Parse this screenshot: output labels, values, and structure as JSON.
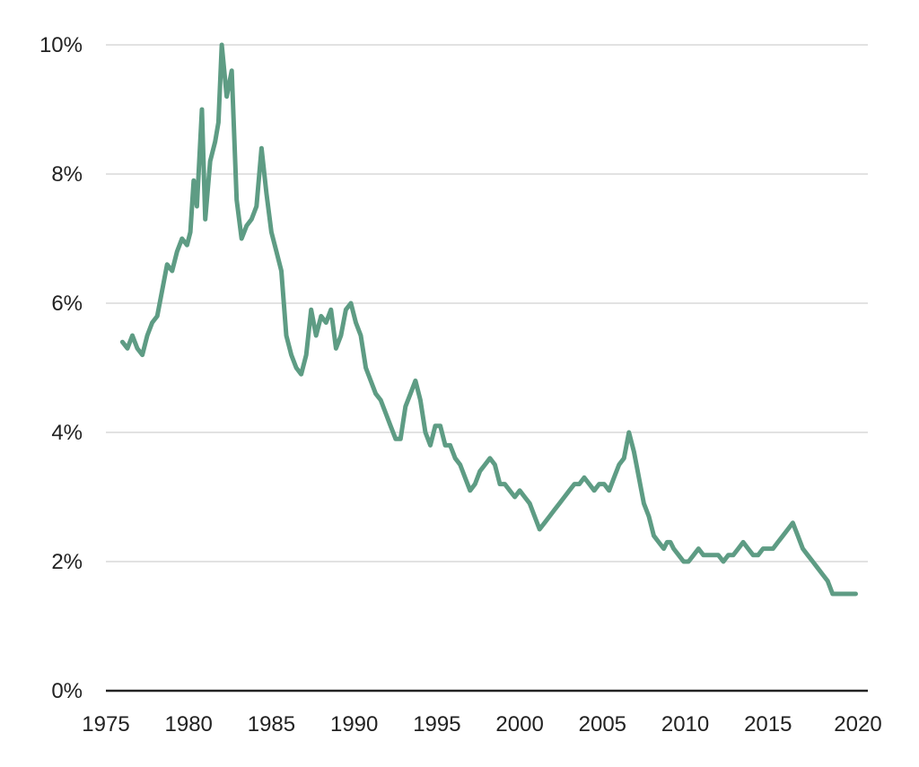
{
  "chart_data": {
    "type": "line",
    "title": "",
    "xlabel": "",
    "ylabel": "",
    "xlim": [
      1975,
      2020
    ],
    "ylim": [
      0,
      10
    ],
    "x_ticks": [
      1975,
      1980,
      1985,
      1990,
      1995,
      2000,
      2005,
      2010,
      2015,
      2020
    ],
    "x_tick_labels": [
      "1975",
      "1980",
      "1985",
      "1990",
      "1995",
      "2000",
      "2005",
      "2010",
      "2015",
      "2020"
    ],
    "y_ticks": [
      0,
      2,
      4,
      6,
      8,
      10
    ],
    "y_tick_labels": [
      "0%",
      "2%",
      "4%",
      "6%",
      "8%",
      "10%"
    ],
    "grid": "horizontal",
    "legend": "none",
    "series": [
      {
        "color": "#5e9c84",
        "x": [
          1976.0,
          1976.3,
          1976.6,
          1976.9,
          1977.2,
          1977.5,
          1977.8,
          1978.1,
          1978.4,
          1978.7,
          1979.0,
          1979.3,
          1979.6,
          1979.9,
          1980.1,
          1980.3,
          1980.5,
          1980.8,
          1981.0,
          1981.3,
          1981.6,
          1981.8,
          1982.0,
          1982.3,
          1982.6,
          1982.9,
          1983.2,
          1983.5,
          1983.8,
          1984.1,
          1984.4,
          1984.7,
          1985.0,
          1985.3,
          1985.6,
          1985.9,
          1986.2,
          1986.5,
          1986.8,
          1987.1,
          1987.4,
          1987.7,
          1988.0,
          1988.3,
          1988.6,
          1988.9,
          1989.2,
          1989.5,
          1989.8,
          1990.1,
          1990.4,
          1990.7,
          1991.0,
          1991.3,
          1991.6,
          1991.9,
          1992.2,
          1992.5,
          1992.8,
          1993.1,
          1993.4,
          1993.7,
          1994.0,
          1994.3,
          1994.6,
          1994.9,
          1995.2,
          1995.5,
          1995.8,
          1996.1,
          1996.4,
          1996.7,
          1997.0,
          1997.3,
          1997.6,
          1997.9,
          1998.2,
          1998.5,
          1998.8,
          1999.1,
          1999.4,
          1999.7,
          2000.0,
          2000.3,
          2000.6,
          2000.9,
          2001.2,
          2001.5,
          2001.8,
          2002.1,
          2002.4,
          2002.7,
          2003.0,
          2003.3,
          2003.6,
          2003.9,
          2004.2,
          2004.5,
          2004.8,
          2005.1,
          2005.4,
          2005.7,
          2006.0,
          2006.3,
          2006.6,
          2006.9,
          2007.2,
          2007.5,
          2007.8,
          2008.1,
          2008.4,
          2008.7,
          2008.9,
          2009.1,
          2009.3,
          2009.6,
          2009.9,
          2010.2,
          2010.5,
          2010.8,
          2011.1,
          2011.4,
          2011.7,
          2012.0,
          2012.3,
          2012.6,
          2012.9,
          2013.2,
          2013.5,
          2013.8,
          2014.1,
          2014.4,
          2014.7,
          2015.0,
          2015.3,
          2015.6,
          2015.9,
          2016.2,
          2016.5,
          2016.8,
          2017.1,
          2017.4,
          2017.7,
          2018.0,
          2018.3,
          2018.6,
          2018.9,
          2019.2,
          2019.5,
          2019.8,
          2020.1,
          2020.3
        ],
        "y": [
          5.4,
          5.3,
          5.5,
          5.3,
          5.2,
          5.5,
          5.7,
          5.8,
          6.2,
          6.6,
          6.5,
          6.8,
          7.0,
          6.9,
          7.1,
          7.9,
          7.5,
          9.0,
          7.3,
          8.2,
          8.5,
          8.8,
          10.0,
          9.2,
          9.6,
          7.6,
          7.0,
          7.2,
          7.3,
          7.5,
          8.4,
          7.7,
          7.1,
          6.8,
          6.5,
          5.5,
          5.2,
          5.0,
          4.9,
          5.2,
          5.9,
          5.5,
          5.8,
          5.7,
          5.9,
          5.3,
          5.5,
          5.9,
          6.0,
          5.7,
          5.5,
          5.0,
          4.8,
          4.6,
          4.5,
          4.3,
          4.1,
          3.9,
          3.9,
          4.4,
          4.6,
          4.8,
          4.5,
          4.0,
          3.8,
          4.1,
          4.1,
          3.8,
          3.8,
          3.6,
          3.5,
          3.3,
          3.1,
          3.2,
          3.4,
          3.5,
          3.6,
          3.5,
          3.2,
          3.2,
          3.1,
          3.0,
          3.1,
          3.0,
          2.9,
          2.7,
          2.5,
          2.6,
          2.7,
          2.8,
          2.9,
          3.0,
          3.1,
          3.2,
          3.2,
          3.3,
          3.2,
          3.1,
          3.2,
          3.2,
          3.1,
          3.3,
          3.5,
          3.6,
          4.0,
          3.7,
          3.3,
          2.9,
          2.7,
          2.4,
          2.3,
          2.2,
          2.3,
          2.3,
          2.2,
          2.1,
          2.0,
          2.0,
          2.1,
          2.2,
          2.1,
          2.1,
          2.1,
          2.1,
          2.0,
          2.1,
          2.1,
          2.2,
          2.3,
          2.2,
          2.1,
          2.1,
          2.2,
          2.2,
          2.2,
          2.3,
          2.4,
          2.5,
          2.6,
          2.4,
          2.2,
          2.1,
          2.0,
          1.9,
          1.8,
          1.7,
          1.5,
          1.5,
          1.5,
          1.5,
          1.5,
          1.5
        ]
      }
    ]
  }
}
